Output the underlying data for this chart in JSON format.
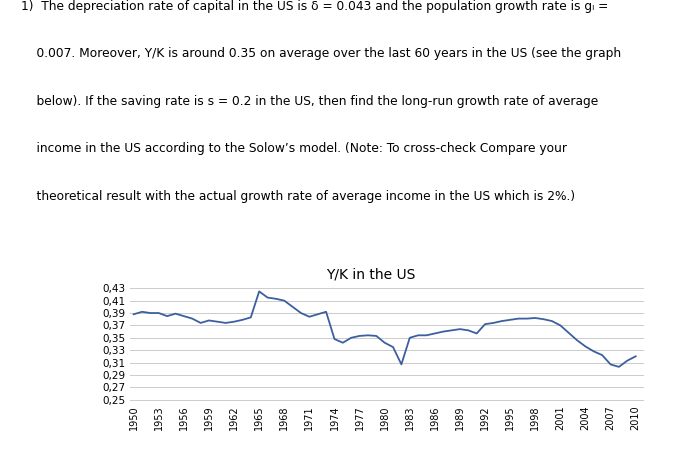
{
  "title": "Y/K in the US",
  "years": [
    1950,
    1951,
    1952,
    1953,
    1954,
    1955,
    1956,
    1957,
    1958,
    1959,
    1960,
    1961,
    1962,
    1963,
    1964,
    1965,
    1966,
    1967,
    1968,
    1969,
    1970,
    1971,
    1972,
    1973,
    1974,
    1975,
    1976,
    1977,
    1978,
    1979,
    1980,
    1981,
    1982,
    1983,
    1984,
    1985,
    1986,
    1987,
    1988,
    1989,
    1990,
    1991,
    1992,
    1993,
    1994,
    1995,
    1996,
    1997,
    1998,
    1999,
    2000,
    2001,
    2002,
    2003,
    2004,
    2005,
    2006,
    2007,
    2008,
    2009,
    2010
  ],
  "values": [
    0.388,
    0.392,
    0.39,
    0.39,
    0.385,
    0.389,
    0.385,
    0.381,
    0.374,
    0.378,
    0.376,
    0.374,
    0.376,
    0.379,
    0.383,
    0.425,
    0.415,
    0.413,
    0.41,
    0.4,
    0.39,
    0.384,
    0.388,
    0.392,
    0.348,
    0.342,
    0.35,
    0.353,
    0.354,
    0.353,
    0.342,
    0.335,
    0.307,
    0.35,
    0.354,
    0.354,
    0.357,
    0.36,
    0.362,
    0.364,
    0.362,
    0.357,
    0.372,
    0.374,
    0.377,
    0.379,
    0.381,
    0.381,
    0.382,
    0.38,
    0.377,
    0.37,
    0.358,
    0.346,
    0.336,
    0.328,
    0.322,
    0.307,
    0.303,
    0.313,
    0.32
  ],
  "line_color": "#3B5FA0",
  "line_width": 1.3,
  "yticks": [
    0.25,
    0.27,
    0.29,
    0.31,
    0.33,
    0.35,
    0.37,
    0.39,
    0.41,
    0.43
  ],
  "xtick_years": [
    1950,
    1953,
    1956,
    1959,
    1962,
    1965,
    1968,
    1971,
    1974,
    1977,
    1980,
    1983,
    1986,
    1989,
    1992,
    1995,
    1998,
    2001,
    2004,
    2007,
    2010
  ],
  "ylim": [
    0.245,
    0.445
  ],
  "xlim": [
    1949.5,
    2011
  ],
  "grid_color": "#cccccc",
  "text_lines": [
    "1)  The depreciation rate of capital in the US is δ = 0.043 and the population growth rate is gₗ =",
    "    0.007. Moreover, Y/K is around 0.35 on average over the last 60 years in the US (see the graph",
    "    below). If the saving rate is s = 0.2 in the US, then find the long-run growth rate of average",
    "    income in the US according to the Solow’s model. (Note: To cross-check Compare your",
    "    theoretical result with the actual growth rate of average income in the US which is 2%.)"
  ]
}
